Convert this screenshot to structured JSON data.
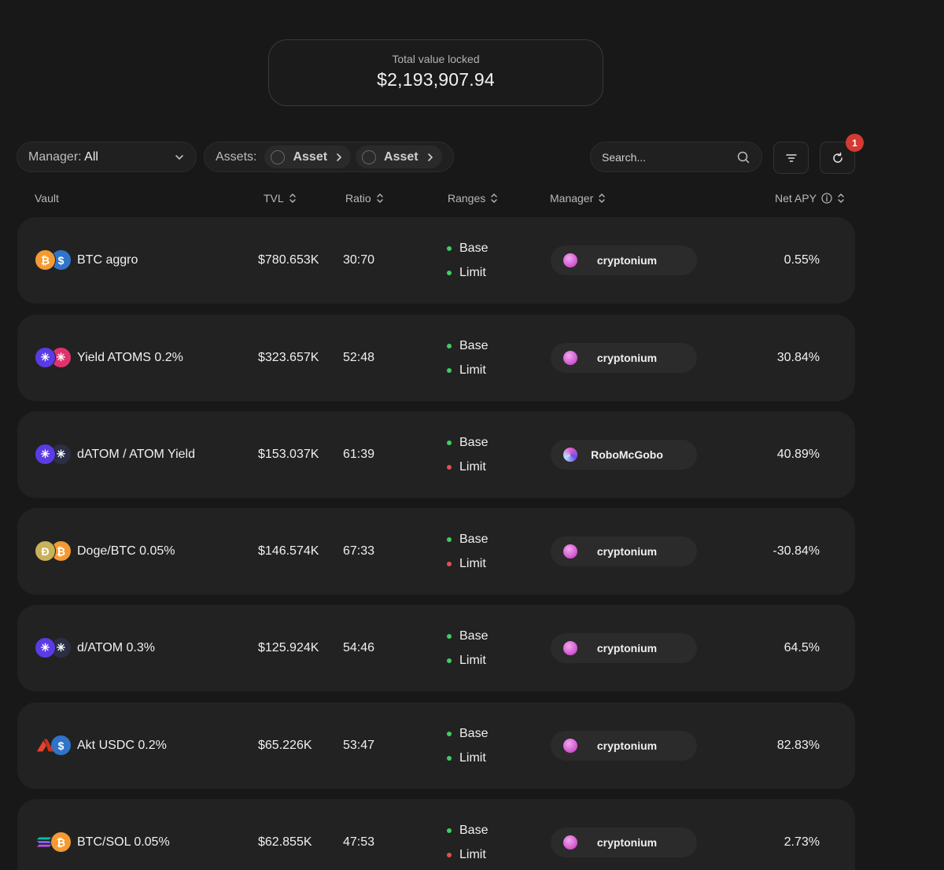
{
  "tvl": {
    "label": "Total value locked",
    "value": "$2,193,907.94"
  },
  "filters": {
    "manager_prefix": "Manager:",
    "manager_value": "All",
    "assets_label": "Assets:",
    "asset_chips": [
      "Asset",
      "Asset"
    ],
    "search_placeholder": "Search...",
    "refresh_badge": "1"
  },
  "columns": {
    "vault": "Vault",
    "tvl": "TVL",
    "ratio": "Ratio",
    "ranges": "Ranges",
    "manager": "Manager",
    "net_apy": "Net APY"
  },
  "rows": [
    {
      "name": "BTC aggro",
      "tvl": "$780.653K",
      "ratio": "30:70",
      "base_label": "Base",
      "limit_label": "Limit",
      "base_status": "green",
      "limit_status": "green",
      "manager": "cryptonium",
      "apy": "0.55%",
      "tokens": [
        "bitcoin-icon",
        "usdc-icon"
      ]
    },
    {
      "name": "Yield ATOMS 0.2%",
      "tvl": "$323.657K",
      "ratio": "52:48",
      "base_label": "Base",
      "limit_label": "Limit",
      "base_status": "green",
      "limit_status": "green",
      "manager": "cryptonium",
      "apy": "30.84%",
      "tokens": [
        "atom-icon",
        "atom-pink-icon"
      ]
    },
    {
      "name": "dATOM / ATOM Yield",
      "tvl": "$153.037K",
      "ratio": "61:39",
      "base_label": "Base",
      "limit_label": "Limit",
      "base_status": "green",
      "limit_status": "red",
      "manager": "RoboMcGobo",
      "apy": "40.89%",
      "tokens": [
        "atom-icon",
        "datom-icon"
      ]
    },
    {
      "name": "Doge/BTC 0.05%",
      "tvl": "$146.574K",
      "ratio": "67:33",
      "base_label": "Base",
      "limit_label": "Limit",
      "base_status": "green",
      "limit_status": "red",
      "manager": "cryptonium",
      "apy": "-30.84%",
      "tokens": [
        "doge-icon",
        "bitcoin-icon"
      ]
    },
    {
      "name": "d/ATOM 0.3%",
      "tvl": "$125.924K",
      "ratio": "54:46",
      "base_label": "Base",
      "limit_label": "Limit",
      "base_status": "green",
      "limit_status": "green",
      "manager": "cryptonium",
      "apy": "64.5%",
      "tokens": [
        "atom-icon",
        "datom-icon"
      ]
    },
    {
      "name": "Akt USDC 0.2%",
      "tvl": "$65.226K",
      "ratio": "53:47",
      "base_label": "Base",
      "limit_label": "Limit",
      "base_status": "green",
      "limit_status": "green",
      "manager": "cryptonium",
      "apy": "82.83%",
      "tokens": [
        "akash-icon",
        "usdc-icon"
      ]
    },
    {
      "name": "BTC/SOL 0.05%",
      "tvl": "$62.855K",
      "ratio": "47:53",
      "base_label": "Base",
      "limit_label": "Limit",
      "base_status": "green",
      "limit_status": "red",
      "manager": "cryptonium",
      "apy": "2.73%",
      "tokens": [
        "solana-icon",
        "bitcoin-icon"
      ]
    }
  ],
  "colors": {
    "background": "#181818",
    "row_background": "#222222",
    "status_green": "#3ecf5f",
    "status_red": "#e05151",
    "badge_red": "#d23b33"
  }
}
